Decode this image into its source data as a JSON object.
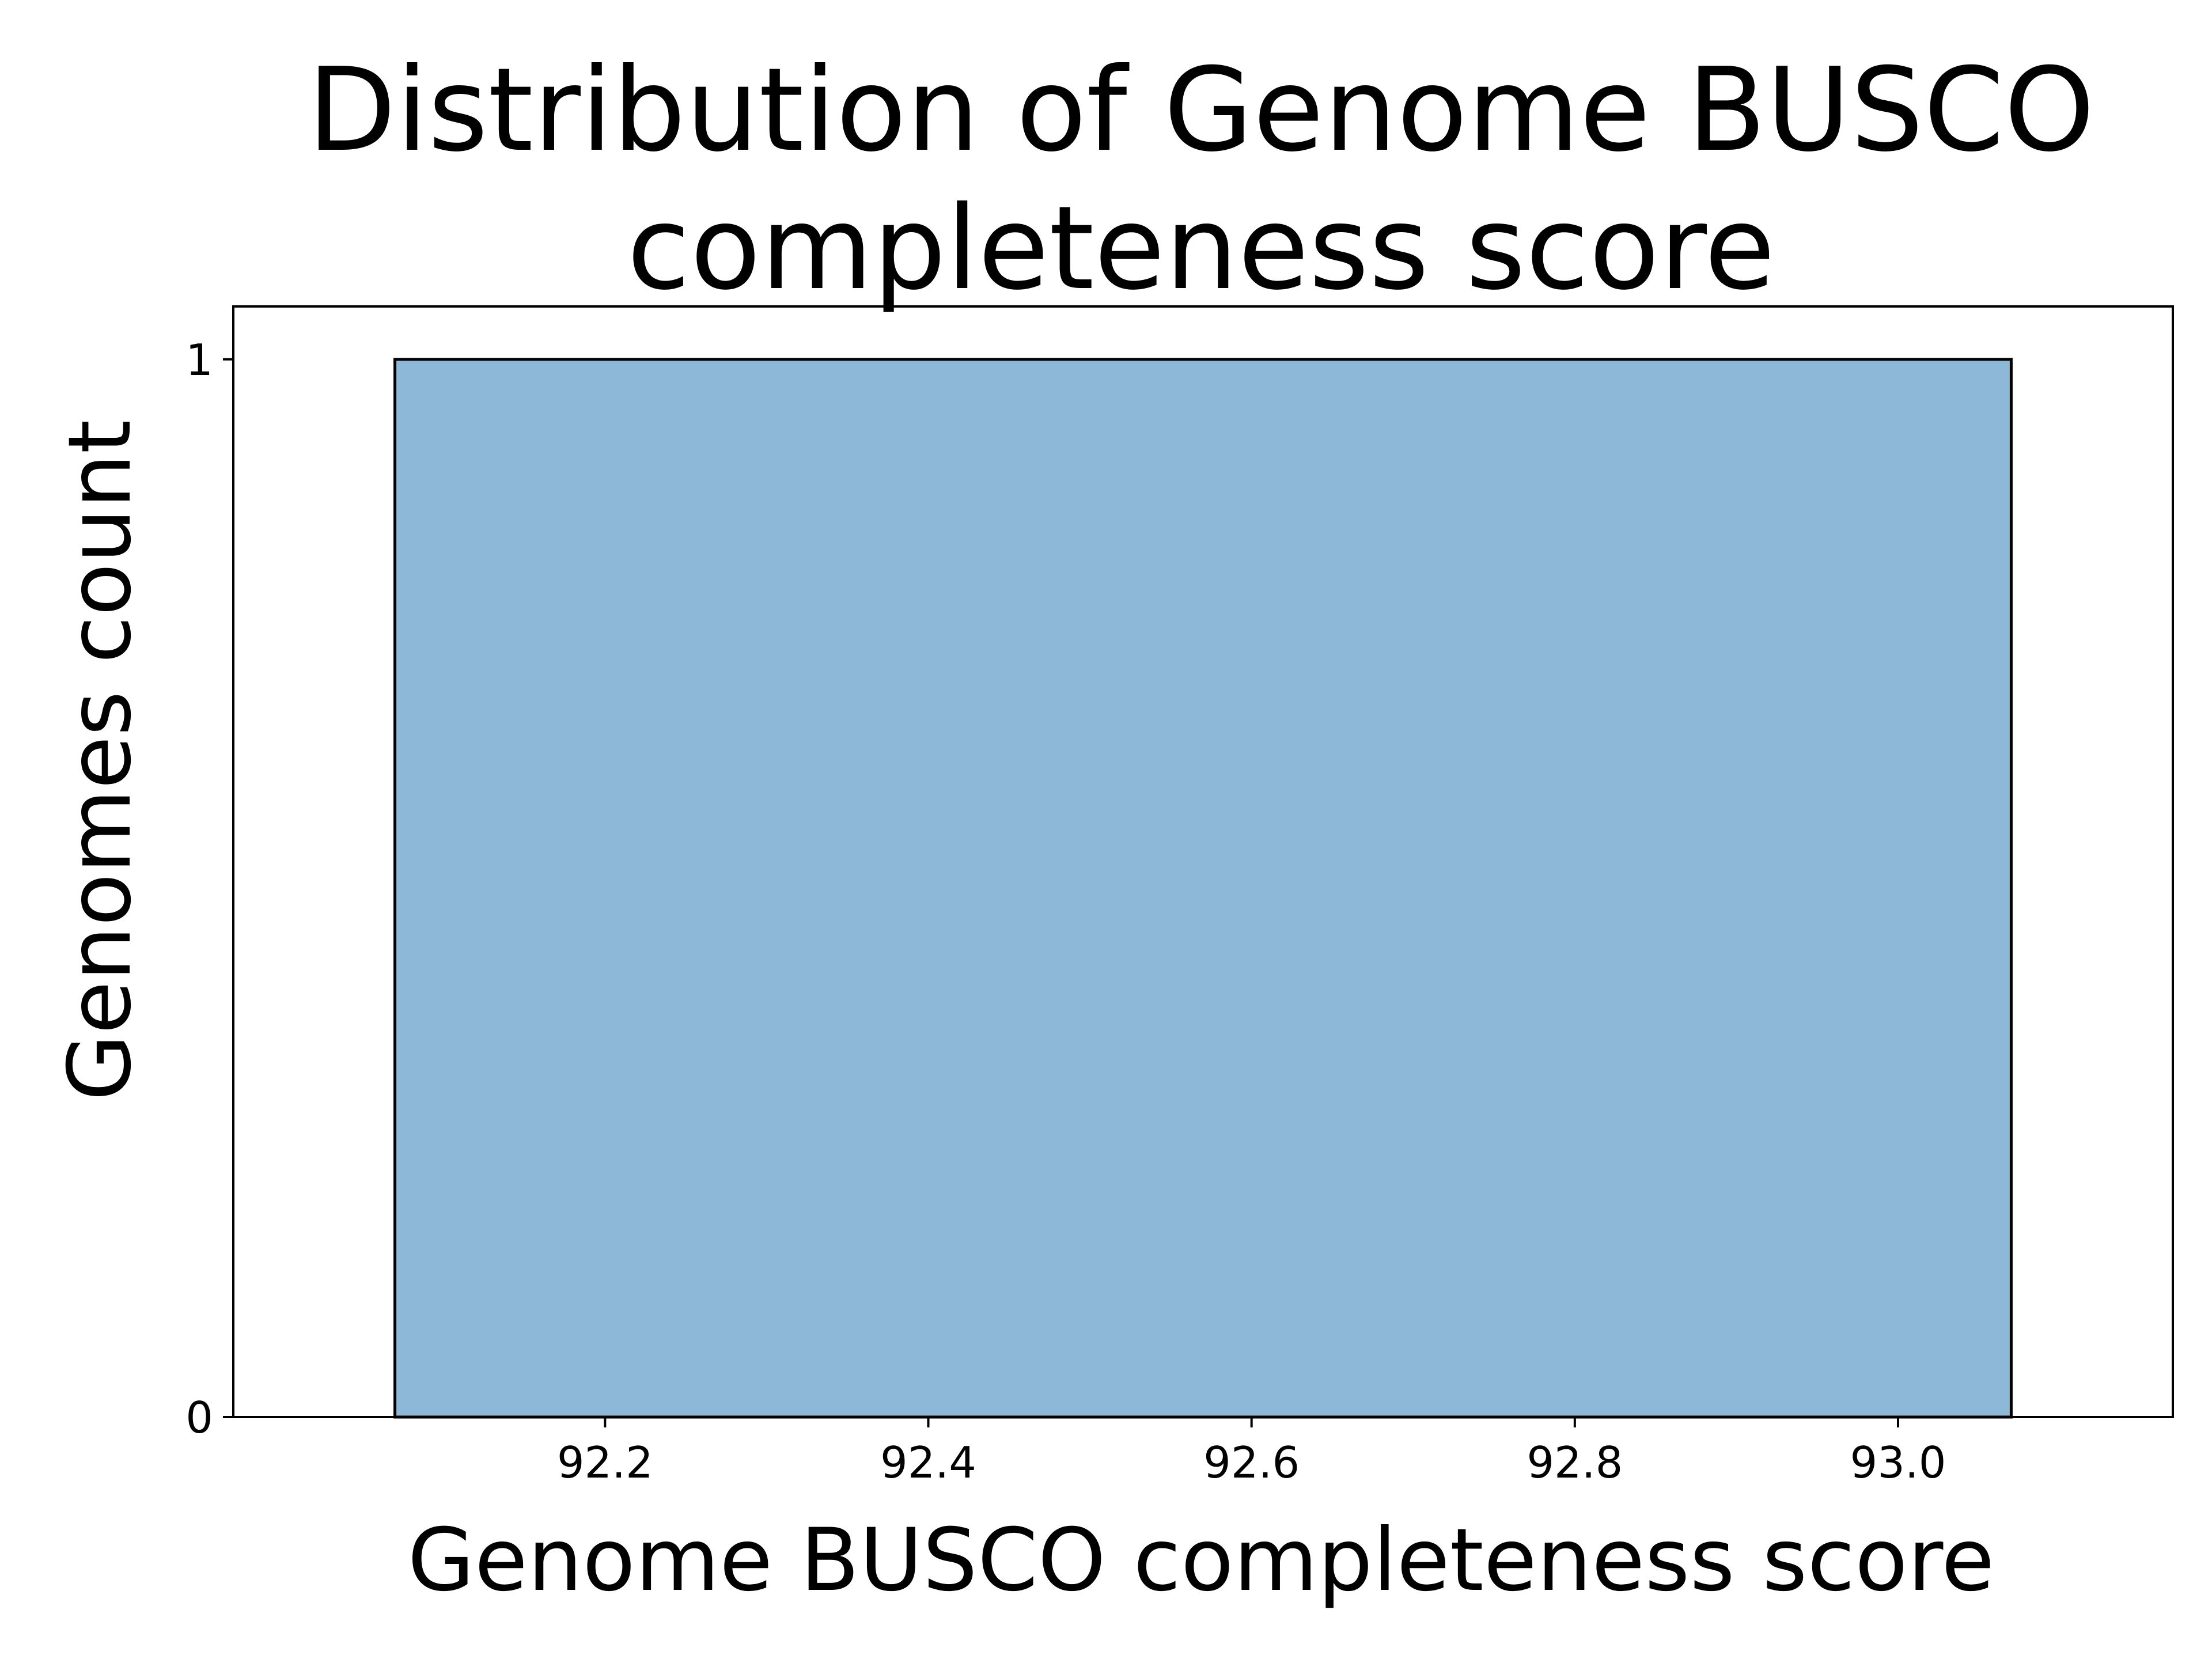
{
  "chart_data": {
    "type": "bar",
    "title": "Distribution of Genome BUSCO completeness score",
    "title_lines": [
      "Distribution of Genome BUSCO",
      "completeness score"
    ],
    "xlabel": "Genome BUSCO completeness score",
    "ylabel": "Genomes count",
    "bins": [
      {
        "x_start": 92.07,
        "x_end": 93.07,
        "count": 1
      }
    ],
    "x_ticks": [
      92.2,
      92.4,
      92.6,
      92.8,
      93.0
    ],
    "x_tick_labels": [
      "92.2",
      "92.4",
      "92.6",
      "92.8",
      "93.0"
    ],
    "y_ticks": [
      0,
      1
    ],
    "y_tick_labels": [
      "0",
      "1"
    ],
    "xlim": [
      91.97,
      93.17
    ],
    "ylim": [
      0,
      1.05
    ],
    "grid": false,
    "bar_color": "#8db8d8",
    "bar_edge_color": "#000000"
  }
}
